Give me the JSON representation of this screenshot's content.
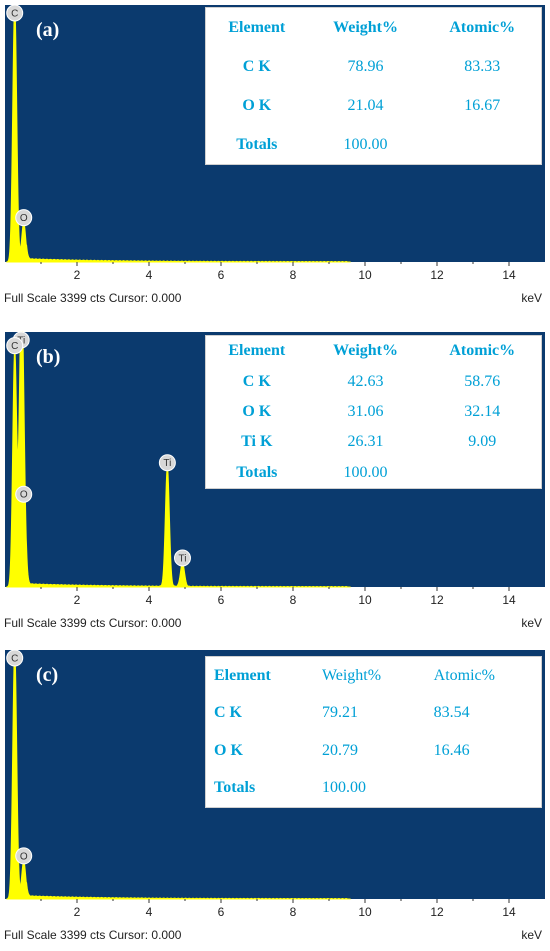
{
  "footer": {
    "scale_text": "Full Scale 3399 cts Cursor: 0.000",
    "unit": "keV"
  },
  "colors": {
    "background": "#0b3a6e",
    "spectrum": "#ffff00",
    "table_text": "#00a0d6",
    "frame": "#ffffff"
  },
  "chart_data": [
    {
      "type": "area",
      "panel_label": "(a)",
      "xlabel": "keV",
      "xlim": [
        0,
        15
      ],
      "xticks": [
        2,
        4,
        6,
        8,
        10,
        12,
        14
      ],
      "ylim": [
        0,
        3399
      ],
      "peaks": [
        {
          "label": "C",
          "x": 0.27,
          "y": 3399
        },
        {
          "label": "O",
          "x": 0.52,
          "y": 520
        }
      ],
      "table": {
        "headers": [
          "Element",
          "Weight%",
          "Atomic%"
        ],
        "rows": [
          [
            "C K",
            "78.96",
            "83.33"
          ],
          [
            "O K",
            "21.04",
            "16.67"
          ],
          [
            "Totals",
            "100.00",
            ""
          ]
        ]
      }
    },
    {
      "type": "area",
      "panel_label": "(b)",
      "xlabel": "keV",
      "xlim": [
        0,
        15
      ],
      "xticks": [
        2,
        4,
        6,
        8,
        10,
        12,
        14
      ],
      "ylim": [
        0,
        3399
      ],
      "peaks": [
        {
          "label": "Ti",
          "x": 0.45,
          "y": 3399
        },
        {
          "label": "C",
          "x": 0.27,
          "y": 3150
        },
        {
          "label": "O",
          "x": 0.52,
          "y": 1170
        },
        {
          "label": "Ti",
          "x": 4.51,
          "y": 1590
        },
        {
          "label": "Ti",
          "x": 4.93,
          "y": 320
        }
      ],
      "table": {
        "headers": [
          "Element",
          "Weight%",
          "Atomic%"
        ],
        "rows": [
          [
            "C K",
            "42.63",
            "58.76"
          ],
          [
            "O K",
            "31.06",
            "32.14"
          ],
          [
            "Ti K",
            "26.31",
            "9.09"
          ],
          [
            "Totals",
            "100.00",
            ""
          ]
        ]
      }
    },
    {
      "type": "area",
      "panel_label": "(c)",
      "xlabel": "keV",
      "xlim": [
        0,
        15
      ],
      "xticks": [
        2,
        4,
        6,
        8,
        10,
        12,
        14
      ],
      "ylim": [
        0,
        3399
      ],
      "peaks": [
        {
          "label": "C",
          "x": 0.27,
          "y": 3399
        },
        {
          "label": "O",
          "x": 0.52,
          "y": 520
        }
      ],
      "table": {
        "headers": [
          "Element",
          "Weight%",
          "Atomic%"
        ],
        "rows": [
          [
            "C K",
            "79.21",
            "83.54"
          ],
          [
            "O K",
            "20.79",
            "16.46"
          ],
          [
            "Totals",
            "100.00",
            ""
          ]
        ]
      }
    }
  ]
}
